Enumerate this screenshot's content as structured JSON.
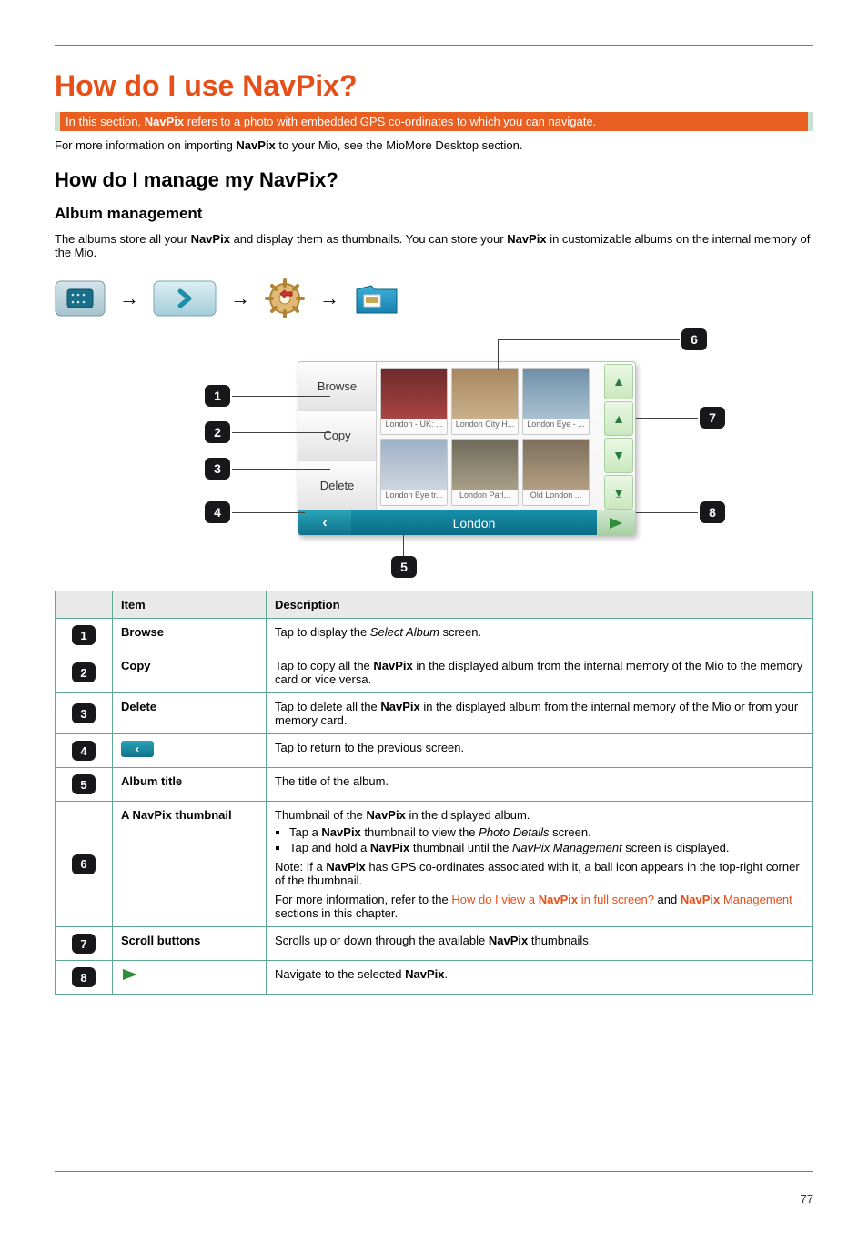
{
  "page_number": "77",
  "title_part1": "How do I use ",
  "title_np": "NavPix",
  "title_q": "?",
  "orange_bar_leader": "In this section, ",
  "orange_bar_np": "NavPix",
  "orange_bar_trail": " refers to a photo with embedded GPS co-ordinates to which you can navigate.",
  "note_leader": "For more information on importing ",
  "note_np": "NavPix",
  "note_trail": " to your Mio, see the MioMore Desktop section.",
  "sub_leader": "How do I manage my ",
  "sub_np": "NavPix",
  "sub_q": "?",
  "section_heading": "Album management",
  "intro_a": "The albums store all your ",
  "intro_b": " and display them as thumbnails. You can store your ",
  "intro_c": " in customizable albums on the internal memory of the Mio.",
  "np_word": "NavPix",
  "crumb_tooltips": {
    "c1": "home-tile-icon",
    "c2": "page-forward-icon",
    "c3": "gear-icon",
    "c4": "album-icon"
  },
  "device": {
    "left_browse": "Browse",
    "left_copy": "Copy",
    "left_delete": "Delete",
    "bar_label": "London",
    "thumbs": [
      {
        "label": "London - UK: ...",
        "bg": "linear-gradient(#6e2a2a,#a44)"
      },
      {
        "label": "London City H...",
        "bg": "linear-gradient(#a88760,#c7b08a)"
      },
      {
        "label": "London Eye - ...",
        "bg": "linear-gradient(#6e8fa8,#aac1d1)"
      },
      {
        "label": "London Eye tr...",
        "bg": "linear-gradient(#9fb0c5,#cdd6df)"
      },
      {
        "label": "London Parl...",
        "bg": "linear-gradient(#6f6a5b,#a89f85)"
      },
      {
        "label": "Old London ...",
        "bg": "linear-gradient(#7c6f5c,#b39f82)"
      }
    ]
  },
  "table": {
    "head_item": "Item",
    "head_desc": "Description",
    "rows": [
      {
        "n": "1",
        "item": "Browse",
        "desc": [
          {
            "t": "Tap to display the ",
            "cls": ""
          },
          {
            "t": "Select Album",
            "cls": "i"
          },
          {
            "t": " screen.",
            "cls": ""
          }
        ]
      },
      {
        "n": "2",
        "item": "Copy",
        "desc": [
          {
            "t": "Tap to copy all the ",
            "cls": ""
          },
          {
            "t": "NavPix",
            "cls": "np"
          },
          {
            "t": " in the displayed album from the internal memory of the Mio to the memory card or vice versa.",
            "cls": ""
          }
        ]
      },
      {
        "n": "3",
        "item": "Delete",
        "desc": [
          {
            "t": "Tap to delete all the ",
            "cls": ""
          },
          {
            "t": "NavPix",
            "cls": "np"
          },
          {
            "t": " in the displayed album from the internal memory of the Mio or from your memory card.",
            "cls": ""
          }
        ]
      },
      {
        "n": "4",
        "item": "__miniback__",
        "desc": [
          {
            "t": "Tap to return to the previous screen.",
            "cls": ""
          }
        ]
      },
      {
        "n": "5",
        "item": "Album title",
        "desc": [
          {
            "t": "The title of the album.",
            "cls": ""
          }
        ]
      },
      {
        "n": "6",
        "item": "",
        "desc_complex": true
      },
      {
        "n": "7",
        "item": "Scroll buttons",
        "desc": [
          {
            "t": "Scrolls up or down through the available ",
            "cls": ""
          },
          {
            "t": "NavPix",
            "cls": "np"
          },
          {
            "t": " thumbnails.",
            "cls": ""
          }
        ]
      },
      {
        "n": "8",
        "item": "__minigo__",
        "desc": [
          {
            "t": "Navigate to the selected ",
            "cls": ""
          },
          {
            "t": "NavPix",
            "cls": "np"
          },
          {
            "t": ".",
            "cls": ""
          }
        ]
      }
    ],
    "row6_leader": "A ",
    "row6_item_thumb": " thumbnail",
    "row6_a": "Thumbnail of the ",
    "row6_b": " in the displayed album.",
    "row6_li1_a": "Tap a ",
    "row6_li1_b": " thumbnail to view the ",
    "row6_li1_c": "Photo Details",
    "row6_li1_d": " screen.",
    "row6_li2_a": "Tap and hold a ",
    "row6_li2_b": " thumbnail until the ",
    "row6_li2_c": "NavPix Management",
    "row6_li2_d": " screen is displayed.",
    "row6_note_a": "Note: If a ",
    "row6_note_b": " has GPS co-ordinates associated with it, a ball icon appears in the top-right corner of the thumbnail.",
    "row6_q_a": "How do I view a ",
    "row6_q_a2": " in full screen?",
    "row6_q_b": "  and ",
    "row6_q_c": "Management",
    "row6_q_d": "For more information, refer to the ",
    "row6_q_e": " sections in this chapter."
  },
  "colors": {
    "orange": "#e64f18",
    "bar": "#e95e21",
    "table_border": "#5ca891",
    "callout_box": "#18181b"
  }
}
